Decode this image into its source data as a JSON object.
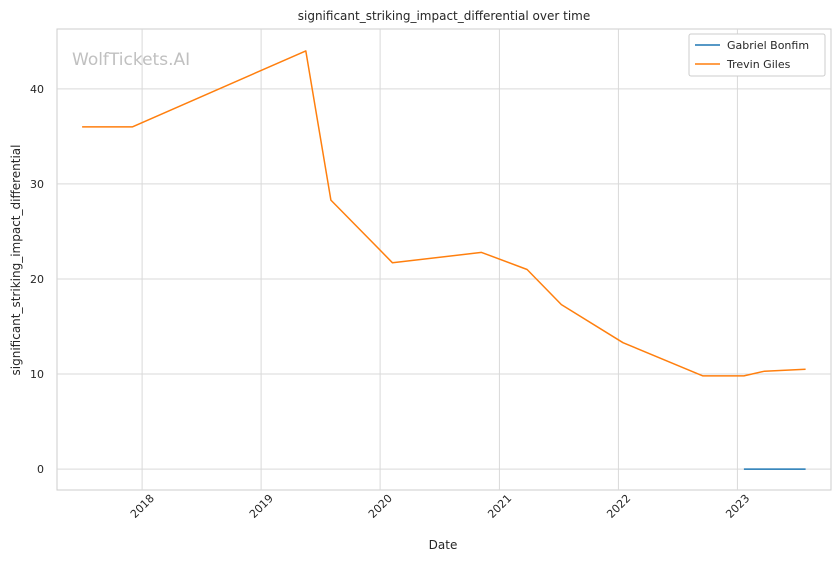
{
  "chart_data": {
    "type": "line",
    "title": "significant_striking_impact_differential over time",
    "xlabel": "Date",
    "ylabel": "significant_striking_impact_differential",
    "watermark": "WolfTickets.AI",
    "x_ticks": [
      "2018",
      "2019",
      "2020",
      "2021",
      "2022",
      "2023"
    ],
    "y_ticks": [
      "0",
      "10",
      "20",
      "30",
      "40"
    ],
    "xlim": [
      "2017-04-15",
      "2023-10-15"
    ],
    "ylim": [
      -2.2,
      46.3
    ],
    "grid": true,
    "legend_position": "top-right",
    "series": [
      {
        "name": "Gabriel Bonfim",
        "color": "#1f77b4",
        "points": [
          {
            "date": "2023-01-21",
            "y": 0
          },
          {
            "date": "2023-07-29",
            "y": 0
          }
        ]
      },
      {
        "name": "Trevin Giles",
        "color": "#ff7f0e",
        "points": [
          {
            "date": "2017-07-01",
            "y": 36.0
          },
          {
            "date": "2017-12-02",
            "y": 36.0
          },
          {
            "date": "2019-05-18",
            "y": 44.0
          },
          {
            "date": "2019-08-03",
            "y": 28.3
          },
          {
            "date": "2020-02-08",
            "y": 21.7
          },
          {
            "date": "2020-11-07",
            "y": 22.8
          },
          {
            "date": "2021-03-27",
            "y": 21.0
          },
          {
            "date": "2021-07-10",
            "y": 17.3
          },
          {
            "date": "2022-01-15",
            "y": 13.3
          },
          {
            "date": "2022-09-17",
            "y": 9.8
          },
          {
            "date": "2023-01-21",
            "y": 9.8
          },
          {
            "date": "2023-03-25",
            "y": 10.3
          },
          {
            "date": "2023-07-29",
            "y": 10.5
          }
        ]
      }
    ]
  }
}
